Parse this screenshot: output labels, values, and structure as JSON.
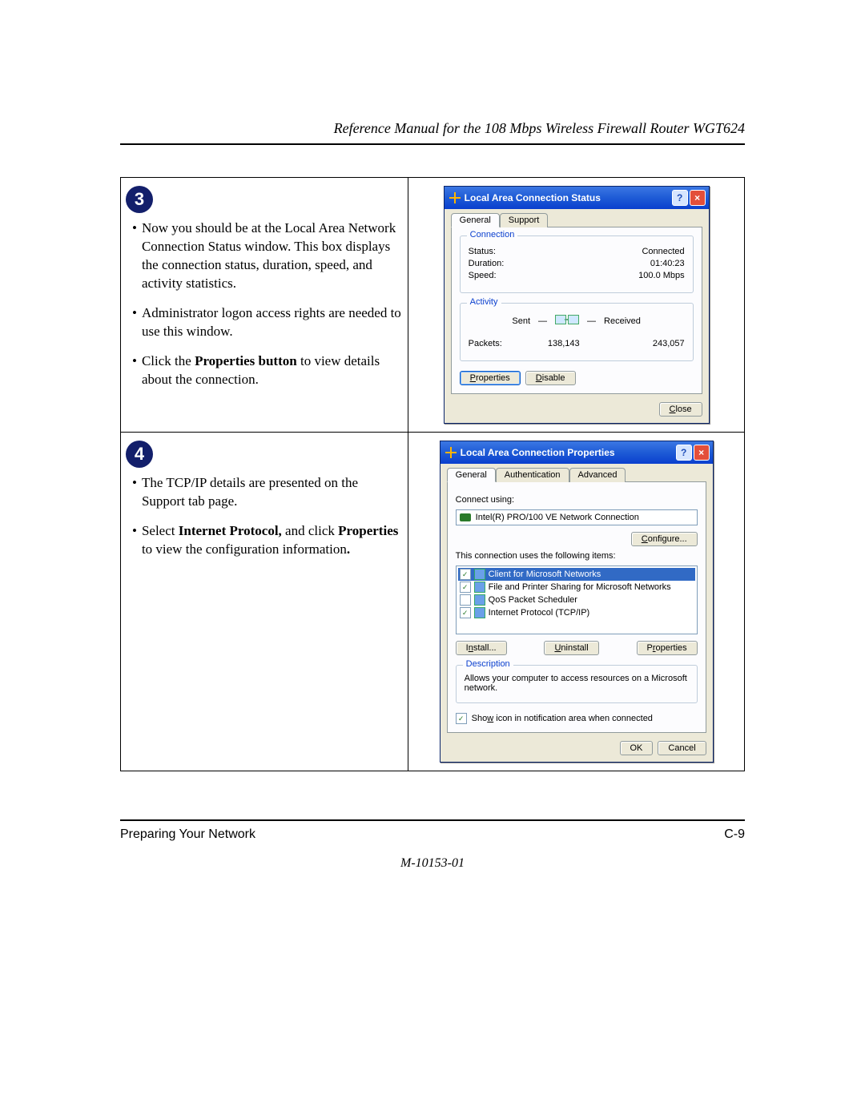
{
  "header": {
    "title": "Reference Manual for the 108 Mbps Wireless Firewall Router WGT624"
  },
  "footer": {
    "left": "Preparing Your Network",
    "right": "C-9",
    "code": "M-10153-01"
  },
  "step3": {
    "badge": "3",
    "bullets": [
      "Now you should be at the Local Area Network Connection Status window. This box displays the connection status, duration, speed, and activity statistics.",
      "Administrator logon access rights are needed to use this window.",
      "Click the <b>Properties button</b> to view details about the connection."
    ]
  },
  "step4": {
    "badge": "4",
    "bullets": [
      "The TCP/IP details are presented on the Support tab page.",
      "Select <b>Internet Protocol,</b> and click <b>Properties</b> to view the configuration information<b>.</b>"
    ]
  },
  "status_dialog": {
    "title": "Local Area Connection Status",
    "tabs": [
      "General",
      "Support"
    ],
    "connection_legend": "Connection",
    "status_label": "Status:",
    "status_value": "Connected",
    "duration_label": "Duration:",
    "duration_value": "01:40:23",
    "speed_label": "Speed:",
    "speed_value": "100.0 Mbps",
    "activity_legend": "Activity",
    "sent_label": "Sent",
    "received_label": "Received",
    "packets_label": "Packets:",
    "packets_sent": "138,143",
    "packets_received": "243,057",
    "btn_properties": "Properties",
    "btn_disable": "Disable",
    "btn_close": "Close"
  },
  "props_dialog": {
    "title": "Local Area Connection Properties",
    "tabs": [
      "General",
      "Authentication",
      "Advanced"
    ],
    "connect_using": "Connect using:",
    "adapter": "Intel(R) PRO/100 VE Network Connection",
    "btn_configure": "Configure...",
    "uses_label": "This connection uses the following items:",
    "items": [
      {
        "checked": true,
        "selected": true,
        "label": "Client for Microsoft Networks"
      },
      {
        "checked": true,
        "selected": false,
        "label": "File and Printer Sharing for Microsoft Networks"
      },
      {
        "checked": false,
        "selected": false,
        "label": "QoS Packet Scheduler"
      },
      {
        "checked": true,
        "selected": false,
        "label": "Internet Protocol (TCP/IP)"
      }
    ],
    "btn_install": "Install...",
    "btn_uninstall": "Uninstall",
    "btn_props": "Properties",
    "desc_legend": "Description",
    "desc_text": "Allows your computer to access resources on a Microsoft network.",
    "show_icon": "Show icon in notification area when connected",
    "btn_ok": "OK",
    "btn_cancel": "Cancel"
  },
  "colors": {
    "badge_bg": "#131f6b",
    "titlebar": "#0a3fce",
    "xp_face": "#ece9d8",
    "xp_border": "#919b9c",
    "legend_blue": "#0a3fce",
    "selection": "#316ac5",
    "close_red": "#e34f3a"
  }
}
